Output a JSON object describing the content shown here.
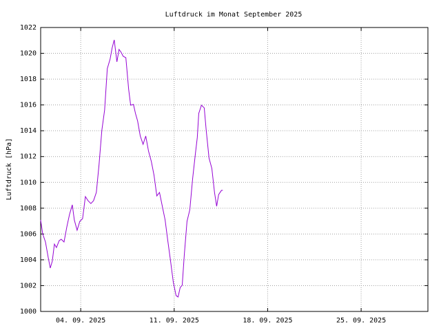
{
  "chart_data": {
    "type": "line",
    "title": "Luftdruck im Monat September 2025",
    "y_label": "Luftdruck [hPa]",
    "x": [
      1.0,
      1.15,
      1.36,
      1.57,
      1.72,
      1.87,
      2.03,
      2.18,
      2.39,
      2.54,
      2.75,
      2.96,
      3.16,
      3.37,
      3.52,
      3.73,
      3.93,
      4.14,
      4.35,
      4.55,
      4.76,
      4.96,
      5.17,
      5.37,
      5.58,
      5.79,
      5.99,
      6.2,
      6.35,
      6.51,
      6.71,
      6.87,
      7.02,
      7.18,
      7.38,
      7.59,
      7.74,
      7.95,
      8.1,
      8.26,
      8.46,
      8.67,
      8.87,
      9.08,
      9.29,
      9.49,
      9.7,
      9.9,
      10.11,
      10.32,
      10.52,
      10.73,
      10.93,
      11.14,
      11.29,
      11.45,
      11.6,
      11.76,
      11.96,
      12.17,
      12.38,
      12.58,
      12.73,
      12.84,
      13.04,
      13.25,
      13.4,
      13.61,
      13.82,
      14.02,
      14.18,
      14.33,
      14.54,
      14.64
    ],
    "series": [
      {
        "color": "#9400d3",
        "values": [
          1007.09,
          1006.02,
          1005.38,
          1004.16,
          1003.36,
          1003.89,
          1005.22,
          1004.95,
          1005.49,
          1005.59,
          1005.38,
          1006.55,
          1007.51,
          1008.26,
          1007.09,
          1006.29,
          1006.98,
          1007.19,
          1008.9,
          1008.58,
          1008.36,
          1008.58,
          1009.22,
          1011.35,
          1014.01,
          1015.61,
          1018.81,
          1019.55,
          1020.4,
          1021.04,
          1019.34,
          1020.3,
          1020.09,
          1019.77,
          1019.66,
          1017.21,
          1015.98,
          1016.04,
          1015.34,
          1014.76,
          1013.59,
          1012.95,
          1013.59,
          1012.41,
          1011.61,
          1010.55,
          1008.95,
          1009.22,
          1008.15,
          1007.09,
          1005.49,
          1003.89,
          1002.29,
          1001.23,
          1001.12,
          1001.86,
          1002.02,
          1004.42,
          1006.98,
          1007.88,
          1010.28,
          1012.15,
          1013.48,
          1015.34,
          1015.98,
          1015.77,
          1014.01,
          1011.88,
          1011.08,
          1009.22,
          1008.15,
          1009.06,
          1009.38,
          1009.38
        ]
      }
    ],
    "xlim": [
      1,
      30
    ],
    "xticks": [
      {
        "value": 4,
        "label": "04. 09. 2025"
      },
      {
        "value": 11,
        "label": "11. 09. 2025"
      },
      {
        "value": 18,
        "label": "18. 09. 2025"
      },
      {
        "value": 25,
        "label": "25. 09. 2025"
      }
    ],
    "ylim": [
      1000,
      1022
    ],
    "yticks": [
      1000,
      1002,
      1004,
      1006,
      1008,
      1010,
      1012,
      1014,
      1016,
      1018,
      1020,
      1022
    ],
    "grid": true
  }
}
